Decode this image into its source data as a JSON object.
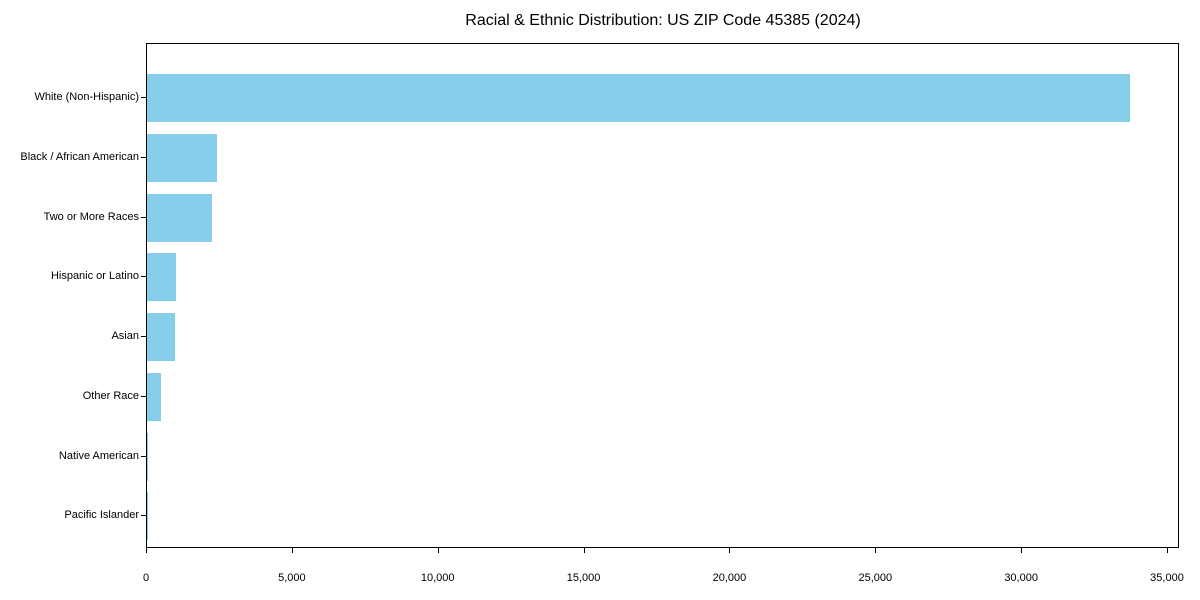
{
  "figure": {
    "background": "#ffffff",
    "border_color": "#000000",
    "text_color": "#000000"
  },
  "chart_data": {
    "type": "bar",
    "orientation": "horizontal",
    "title": "Racial & Ethnic Distribution: US ZIP Code 45385 (2024)",
    "categories": [
      "White (Non-Hispanic)",
      "Black / African American",
      "Two or More Races",
      "Hispanic or Latino",
      "Asian",
      "Other Race",
      "Native American",
      "Pacific Islander"
    ],
    "values": [
      33700,
      2400,
      2230,
      1000,
      950,
      480,
      50,
      10
    ],
    "xlabel": "",
    "ylabel": "",
    "xlim": [
      0,
      35400
    ],
    "xticks": [
      0,
      5000,
      10000,
      15000,
      20000,
      25000,
      30000,
      35000
    ],
    "xtick_labels": [
      "0",
      "5,000",
      "10,000",
      "15,000",
      "20,000",
      "25,000",
      "30,000",
      "35,000"
    ],
    "bar_color": "#87CEEB",
    "grid": false,
    "legend": false
  }
}
